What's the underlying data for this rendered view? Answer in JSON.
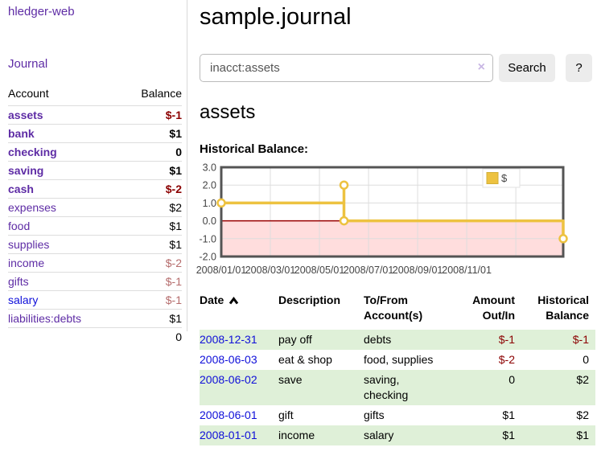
{
  "sidebar": {
    "brand": "hledger-web",
    "nav": [
      {
        "label": "Journal"
      }
    ],
    "table_headers": [
      "Account",
      "Balance"
    ],
    "accounts": [
      {
        "name": "assets",
        "level": 0,
        "bold": true,
        "blue": false,
        "balance": "$-1",
        "balance_style": "neg"
      },
      {
        "name": "bank",
        "level": 1,
        "bold": true,
        "blue": false,
        "balance": "$1",
        "balance_style": ""
      },
      {
        "name": "checking",
        "level": 2,
        "bold": true,
        "blue": false,
        "balance": "0",
        "balance_style": ""
      },
      {
        "name": "saving",
        "level": 2,
        "bold": true,
        "blue": false,
        "balance": "$1",
        "balance_style": ""
      },
      {
        "name": "cash",
        "level": 1,
        "bold": true,
        "blue": false,
        "balance": "$-2",
        "balance_style": "neg"
      },
      {
        "name": "expenses",
        "level": 0,
        "bold": false,
        "blue": false,
        "balance": "$2",
        "balance_style": ""
      },
      {
        "name": "food",
        "level": 1,
        "bold": false,
        "blue": false,
        "balance": "$1",
        "balance_style": ""
      },
      {
        "name": "supplies",
        "level": 1,
        "bold": false,
        "blue": false,
        "balance": "$1",
        "balance_style": ""
      },
      {
        "name": "income",
        "level": 0,
        "bold": false,
        "blue": false,
        "balance": "$-2",
        "balance_style": "negsoft"
      },
      {
        "name": "gifts",
        "level": 1,
        "bold": false,
        "blue": false,
        "balance": "$-1",
        "balance_style": "negsoft"
      },
      {
        "name": "salary",
        "level": 1,
        "bold": false,
        "blue": true,
        "balance": "$-1",
        "balance_style": "negsoft"
      },
      {
        "name": "liabilities:debts",
        "level": 0,
        "bold": false,
        "blue": false,
        "balance": "$1",
        "balance_style": ""
      }
    ],
    "total": "0"
  },
  "header": {
    "title": "sample.journal"
  },
  "search": {
    "value": "inacct:assets",
    "clear_icon": "×",
    "button": "Search",
    "help_button": "?"
  },
  "account_page": {
    "heading": "assets",
    "chart_label": "Historical Balance:"
  },
  "chart_data": {
    "type": "line",
    "title": "Historical Balance:",
    "series": [
      {
        "name": "$",
        "color": "#edc240",
        "points": [
          [
            "2008-01-01",
            1
          ],
          [
            "2008-06-01",
            2
          ],
          [
            "2008-06-03",
            0
          ],
          [
            "2008-12-31",
            -1
          ]
        ]
      }
    ],
    "step_line": {
      "months": [
        0,
        5,
        5,
        5,
        13.93,
        13.93
      ],
      "values": [
        1,
        1,
        2,
        0,
        0,
        -1
      ]
    },
    "markers": {
      "months": [
        0,
        5,
        5,
        13.93
      ],
      "values": [
        1,
        2,
        0,
        -1
      ]
    },
    "x_range_months": [
      0,
      13.93
    ],
    "x_ticks": {
      "months": [
        0,
        2,
        4,
        6,
        8,
        10,
        12
      ],
      "labels": [
        "2008/01/01",
        "2008/03/01",
        "2008/05/01",
        "2008/07/01",
        "2008/09/01",
        "2008/11/01",
        ""
      ]
    },
    "ylim": [
      -2,
      3
    ],
    "y_ticks": [
      3,
      2,
      1,
      0,
      -1,
      -2
    ],
    "y_tick_labels": [
      "3.0",
      "2.0",
      "1.0",
      "0.0",
      "-1.0",
      "-2.0"
    ],
    "grid": true,
    "legend": {
      "position": "top-right",
      "label": "$"
    },
    "colors": {
      "series": "#edc240",
      "marker_fill": "#ffffff",
      "negative_region": "#ffdddd",
      "zero_line": "#990000",
      "grid": "#dddddd",
      "border": "#545454",
      "tick_text": "#444444",
      "legend_bg": "#ffffff",
      "legend_border": "#e2e2e2"
    }
  },
  "transactions": {
    "headers": [
      {
        "line1": "Date",
        "line2": "",
        "align": "left",
        "sorted": true
      },
      {
        "line1": "Description",
        "line2": "",
        "align": "left",
        "sorted": false
      },
      {
        "line1": "To/From",
        "line2": "Account(s)",
        "align": "left",
        "sorted": false
      },
      {
        "line1": "Amount",
        "line2": "Out/In",
        "align": "right",
        "sorted": false
      },
      {
        "line1": "Historical",
        "line2": "Balance",
        "align": "right",
        "sorted": false
      }
    ],
    "rows": [
      {
        "date": "2008-12-31",
        "description": "pay off",
        "to_from": "debts",
        "amount": "$-1",
        "balance": "$-1"
      },
      {
        "date": "2008-06-03",
        "description": "eat & shop",
        "to_from": "food, supplies",
        "amount": "$-2",
        "balance": "0"
      },
      {
        "date": "2008-06-02",
        "description": "save",
        "to_from": "saving,\nchecking",
        "amount": "0",
        "balance": "$2"
      },
      {
        "date": "2008-06-01",
        "description": "gift",
        "to_from": "gifts",
        "amount": "$1",
        "balance": "$2"
      },
      {
        "date": "2008-01-01",
        "description": "income",
        "to_from": "salary",
        "amount": "$1",
        "balance": "$1"
      }
    ]
  }
}
